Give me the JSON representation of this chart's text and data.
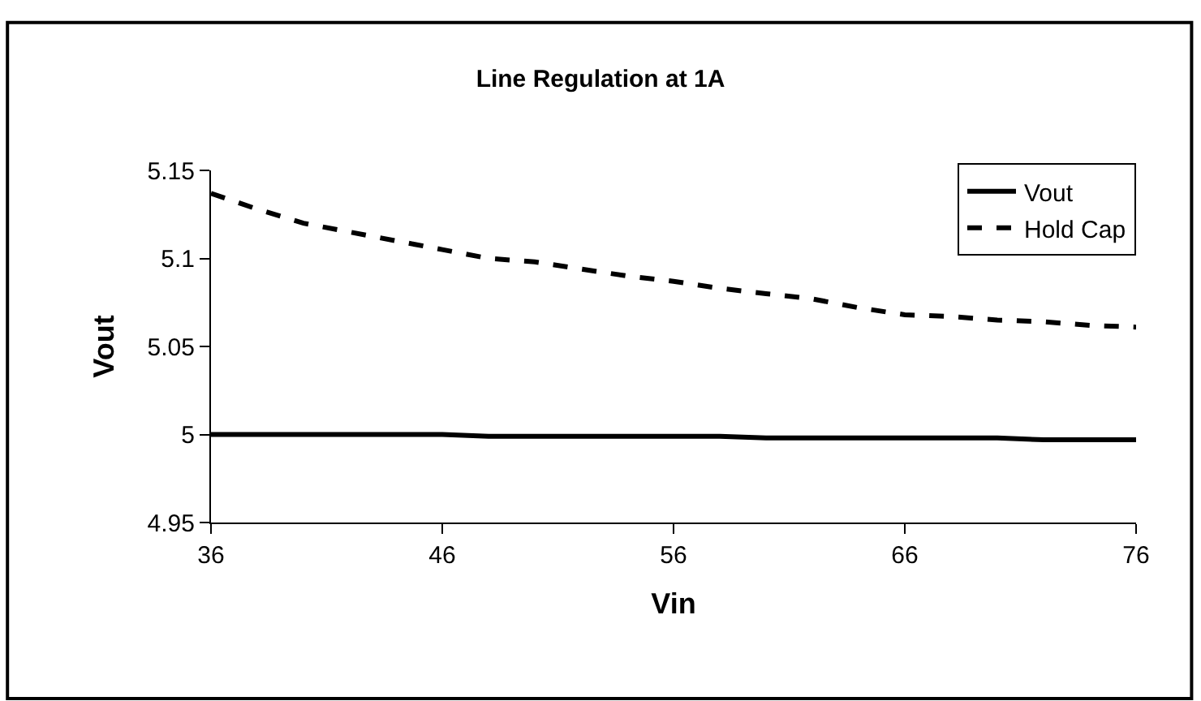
{
  "chart_data": {
    "type": "line",
    "title": "Line Regulation at 1A",
    "xlabel": "Vin",
    "ylabel": "Vout",
    "x": [
      36,
      38,
      40,
      42,
      44,
      46,
      48,
      50,
      52,
      54,
      56,
      58,
      60,
      62,
      64,
      66,
      68,
      70,
      72,
      74,
      76
    ],
    "series": [
      {
        "name": "Vout",
        "color": "#000000",
        "line_style": "solid",
        "values": [
          5.0,
          5.0,
          5.0,
          5.0,
          5.0,
          5.0,
          4.999,
          4.999,
          4.999,
          4.999,
          4.999,
          4.999,
          4.998,
          4.998,
          4.998,
          4.998,
          4.998,
          4.998,
          4.997,
          4.997,
          4.997
        ]
      },
      {
        "name": "Hold Cap",
        "color": "#000000",
        "line_style": "dashed",
        "values": [
          5.137,
          5.128,
          5.12,
          5.115,
          5.11,
          5.105,
          5.1,
          5.098,
          5.094,
          5.09,
          5.087,
          5.083,
          5.08,
          5.077,
          5.072,
          5.068,
          5.067,
          5.065,
          5.064,
          5.062,
          5.061
        ]
      }
    ],
    "xlim": [
      36,
      76
    ],
    "xticks": [
      36,
      46,
      56,
      66,
      76
    ],
    "ylim": [
      4.95,
      5.15
    ],
    "yticks": [
      4.95,
      {
        "value": 5.0,
        "label": "5"
      },
      5.05,
      {
        "value": 5.1,
        "label": "5.1"
      },
      5.15
    ],
    "grid": false,
    "legend": "top right",
    "marker": "none"
  }
}
